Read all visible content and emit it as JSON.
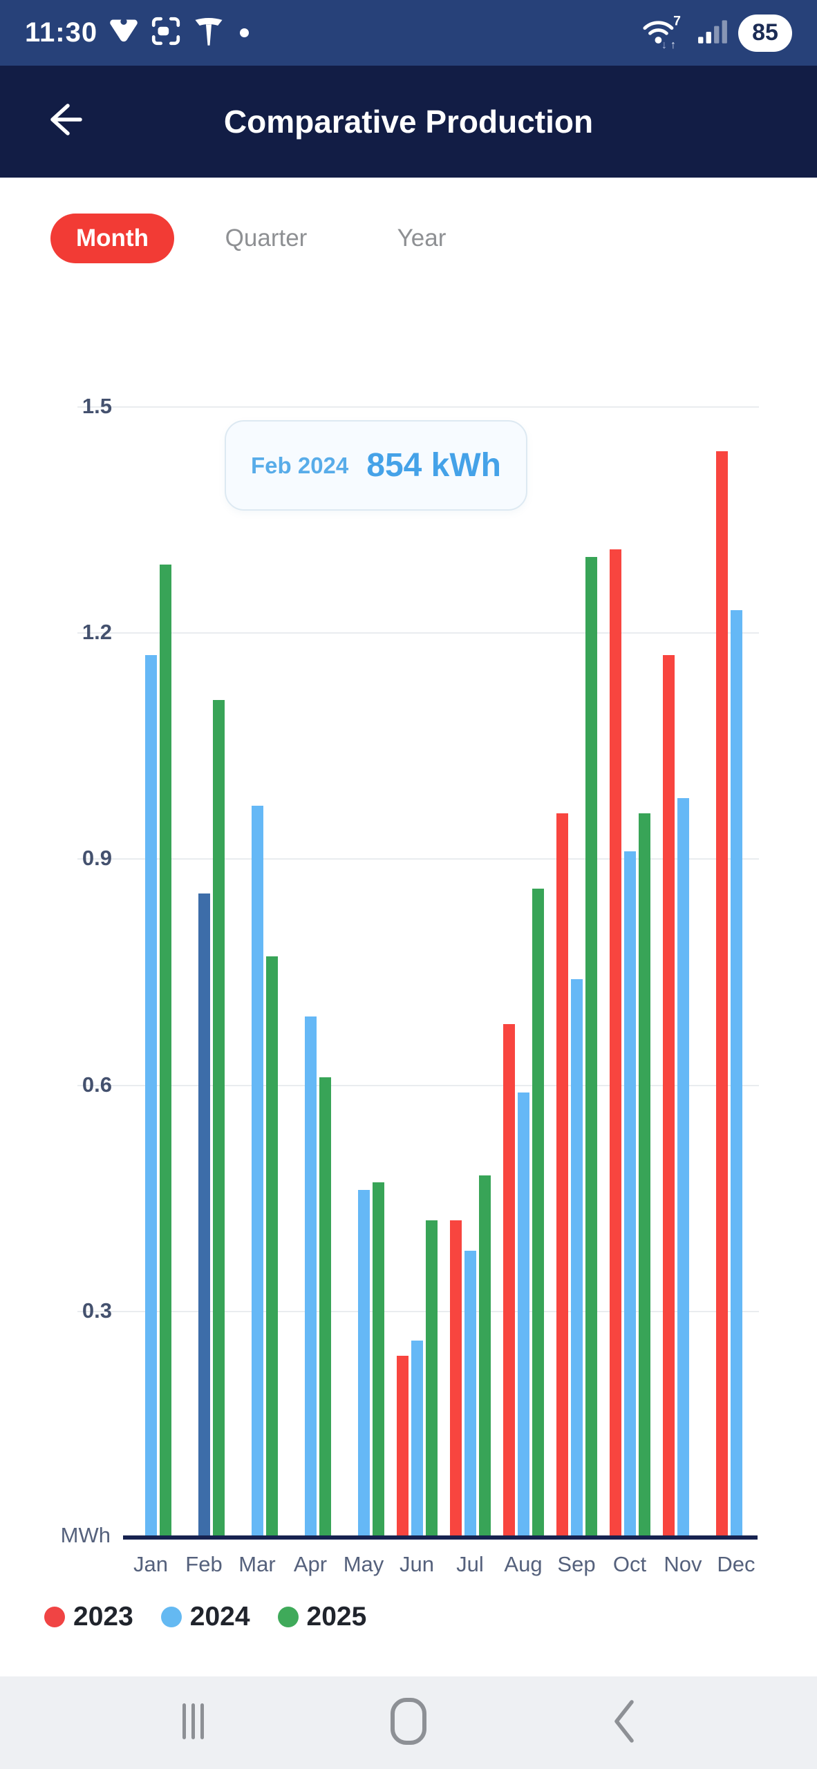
{
  "status_bar": {
    "time": "11:30",
    "battery": "85",
    "left_icons": [
      "vpn-icon",
      "screen-capture-icon",
      "tesla-icon",
      "notification-dot"
    ],
    "right_icons": [
      "wifi-icon",
      "signal-icon",
      "battery-pill"
    ],
    "wifi_generation": "7",
    "bg_color": "#274179"
  },
  "header": {
    "title": "Comparative Production",
    "bg_color": "#121d45"
  },
  "tabs": [
    {
      "label": "Month",
      "active": true
    },
    {
      "label": "Quarter",
      "active": false
    },
    {
      "label": "Year",
      "active": false
    }
  ],
  "tab_accent_color": "#f23b35",
  "tooltip": {
    "label": "Feb 2024",
    "value": "854 kWh"
  },
  "chart_data": {
    "type": "bar",
    "title": "",
    "ylabel": "MWh",
    "xlabel": "",
    "ylim": [
      0,
      1.5
    ],
    "yticks": [
      0.3,
      0.6,
      0.9,
      1.2,
      1.5
    ],
    "grid": true,
    "legend_position": "bottom",
    "categories": [
      "Jan",
      "Feb",
      "Mar",
      "Apr",
      "May",
      "Jun",
      "Jul",
      "Aug",
      "Sep",
      "Oct",
      "Nov",
      "Dec"
    ],
    "series": [
      {
        "name": "2023",
        "color": "#f8453f",
        "values": [
          null,
          null,
          null,
          null,
          null,
          0.24,
          0.42,
          0.68,
          0.96,
          1.31,
          1.17,
          1.44
        ]
      },
      {
        "name": "2024",
        "color": "#65b8f6",
        "values": [
          1.17,
          0.854,
          0.97,
          0.69,
          0.46,
          0.26,
          0.38,
          0.59,
          0.74,
          0.91,
          0.98,
          1.23
        ]
      },
      {
        "name": "2025",
        "color": "#38a457",
        "values": [
          1.29,
          1.11,
          0.77,
          0.61,
          0.47,
          0.42,
          0.48,
          0.86,
          1.3,
          0.96,
          null,
          null
        ]
      }
    ],
    "highlight": {
      "series": "2024",
      "category": "Feb",
      "index": 1,
      "color": "#3d6da9"
    }
  },
  "legend": [
    {
      "label": "2023",
      "color": "#f04444"
    },
    {
      "label": "2024",
      "color": "#64b9f2"
    },
    {
      "label": "2025",
      "color": "#3faa5a"
    }
  ],
  "nav_bar": {
    "icons": [
      "recents-icon",
      "home-icon",
      "back-icon"
    ]
  }
}
